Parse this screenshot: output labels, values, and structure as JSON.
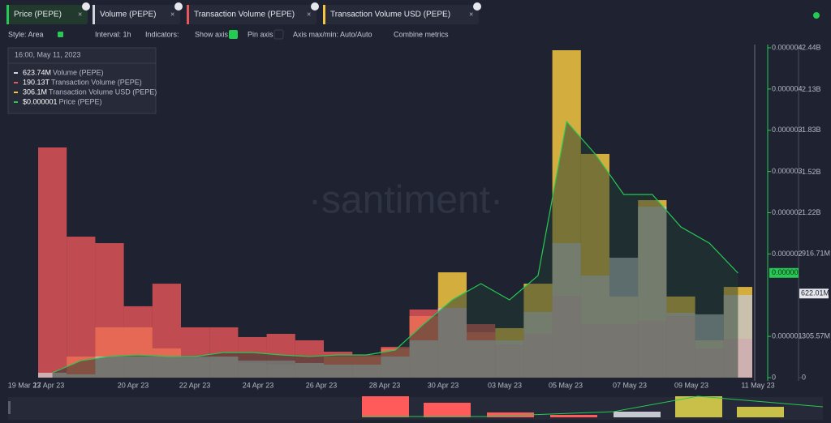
{
  "tabs": [
    {
      "name": "Price (PEPE)",
      "color": "#26c953"
    },
    {
      "name": "Volume (PEPE)",
      "color": "#d2d4dc"
    },
    {
      "name": "Transaction Volume (PEPE)",
      "color": "#e8575a"
    },
    {
      "name": "Transaction Volume USD (PEPE)",
      "color": "#f4c542"
    }
  ],
  "toolbar": {
    "style": "Style: Area",
    "interval": "Interval: 1h",
    "indicators": "Indicators:",
    "show_axis": "Show axis",
    "pin_axis": "Pin axis",
    "axis_minmax": "Axis max/min: Auto/Auto",
    "combine": "Combine metrics"
  },
  "tooltip": {
    "time": "16:00, May 11, 2023",
    "rows": [
      {
        "value": "623.74M",
        "name": "Volume (PEPE)",
        "color": "#d2d4dc"
      },
      {
        "value": "190.13T",
        "name": "Transaction Volume (PEPE)",
        "color": "#e8575a"
      },
      {
        "value": "306.1M",
        "name": "Transaction Volume USD (PEPE)",
        "color": "#f4c542"
      },
      {
        "value": "$0.000001",
        "name": "Price (PEPE)",
        "color": "#26c953"
      }
    ]
  },
  "watermark": "·santiment·",
  "chart_data": {
    "type": "area",
    "series": [
      {
        "name": "Transaction Volume USD (PEPE)",
        "color": "#f4c542",
        "values": [
          36,
          156,
          372,
          372,
          216,
          144,
          156,
          108,
          96,
          108,
          156,
          156,
          216,
          456,
          779,
          336,
          366,
          695,
          2422,
          1655,
          600,
          1313,
          600,
          276,
          671
        ]
      },
      {
        "name": "Transaction Volume (PEPE)",
        "color": "#e8575a",
        "values": [
          1703,
          1043,
          995,
          528,
          695,
          372,
          372,
          300,
          324,
          276,
          192,
          168,
          228,
          504,
          516,
          396,
          246,
          324,
          606,
          396,
          396,
          420,
          456,
          216,
          288
        ]
      },
      {
        "name": "Volume (PEPE)",
        "color": "#c5c8d0",
        "values": [
          36,
          24,
          156,
          156,
          156,
          156,
          156,
          126,
          126,
          108,
          96,
          96,
          156,
          276,
          516,
          276,
          276,
          486,
          995,
          755,
          887,
          1265,
          480,
          468,
          611
        ]
      },
      {
        "name": "Price (PEPE)",
        "color": "#26c953",
        "axis": "y2",
        "values": [
          5.9e-08,
          2.06e-07,
          2.56e-07,
          2.75e-07,
          2.56e-07,
          2.56e-07,
          3.05e-07,
          3.05e-07,
          2.75e-07,
          2.56e-07,
          2.75e-07,
          2.75e-07,
          3.34e-07,
          6.49e-07,
          9.43e-07,
          1.14e-06,
          9.43e-07,
          1.238e-06,
          3.106e-06,
          2.713e-06,
          2.221e-06,
          2.221e-06,
          1.828e-06,
          1.631e-06,
          1.268e-06
        ]
      }
    ],
    "xtick_labels": [
      "19 Mar 23",
      "17 Apr 23",
      "20 Apr 23",
      "22 Apr 23",
      "24 Apr 23",
      "26 Apr 23",
      "28 Apr 23",
      "30 Apr 23",
      "03 May 23",
      "05 May 23",
      "07 May 23",
      "09 May 23",
      "11 May 23"
    ],
    "ylim": [
      0,
      2440
    ],
    "yticks": [
      0,
      {
        "value": 305.57,
        "label": "305.57M"
      },
      {
        "value": 916.71,
        "label": "916.71M"
      },
      {
        "value": 1220,
        "label": "1.22B"
      },
      {
        "value": 1520,
        "label": "1.52B"
      },
      {
        "value": 1830,
        "label": "1.83B"
      },
      {
        "value": 2130,
        "label": "2.13B"
      },
      {
        "value": 2440,
        "label": "2.44B"
      }
    ],
    "y2lim": [
      0,
      4e-06
    ],
    "y2ticks": [
      0,
      {
        "value": 5e-07,
        "label": "0.000001"
      },
      {
        "value": 1.5e-06,
        "label": "0.000002"
      },
      {
        "value": 2e-06,
        "label": "0.000002"
      },
      {
        "value": 2.5e-06,
        "label": "0.000003"
      },
      {
        "value": 3e-06,
        "label": "0.000003"
      },
      {
        "value": 3.5e-06,
        "label": "0.000004"
      },
      {
        "value": 4e-06,
        "label": "0.000004"
      }
    ],
    "current_price": {
      "value": 1.27e-06,
      "label": "0.000001"
    },
    "current_volume": {
      "value": 622.01,
      "label": "622.01M"
    }
  }
}
